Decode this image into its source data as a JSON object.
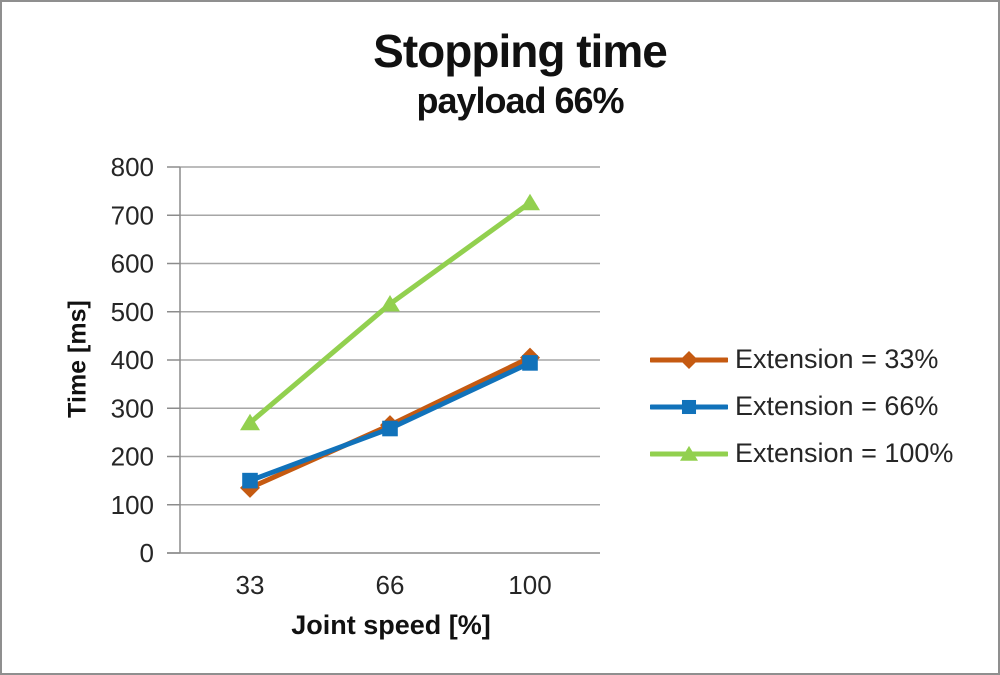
{
  "window": {
    "background": "#ffffff",
    "border_color": "#8f8f8f"
  },
  "chart_data": {
    "type": "line",
    "title": "Stopping time",
    "subtitle": "payload 66%",
    "xlabel": "Joint speed [%]",
    "ylabel": "Time [ms]",
    "categories": [
      "33",
      "66",
      "100"
    ],
    "yticks": [
      0,
      100,
      200,
      300,
      400,
      500,
      600,
      700,
      800
    ],
    "ylim": [
      0,
      800
    ],
    "grid": true,
    "legend_position": "right",
    "series": [
      {
        "name": "Extension = 33%",
        "marker": "diamond",
        "color": "#c55a11",
        "values": [
          135,
          265,
          405
        ]
      },
      {
        "name": "Extension = 66%",
        "marker": "square",
        "color": "#1172ba",
        "values": [
          150,
          258,
          394
        ]
      },
      {
        "name": "Extension = 100%",
        "marker": "triangle",
        "color": "#92d04f",
        "values": [
          270,
          516,
          726
        ]
      }
    ],
    "colors": {
      "gridline": "#a6a6a6",
      "axis": "#8c8c8c",
      "tick_text": "#262626",
      "title_text": "#111111"
    }
  }
}
